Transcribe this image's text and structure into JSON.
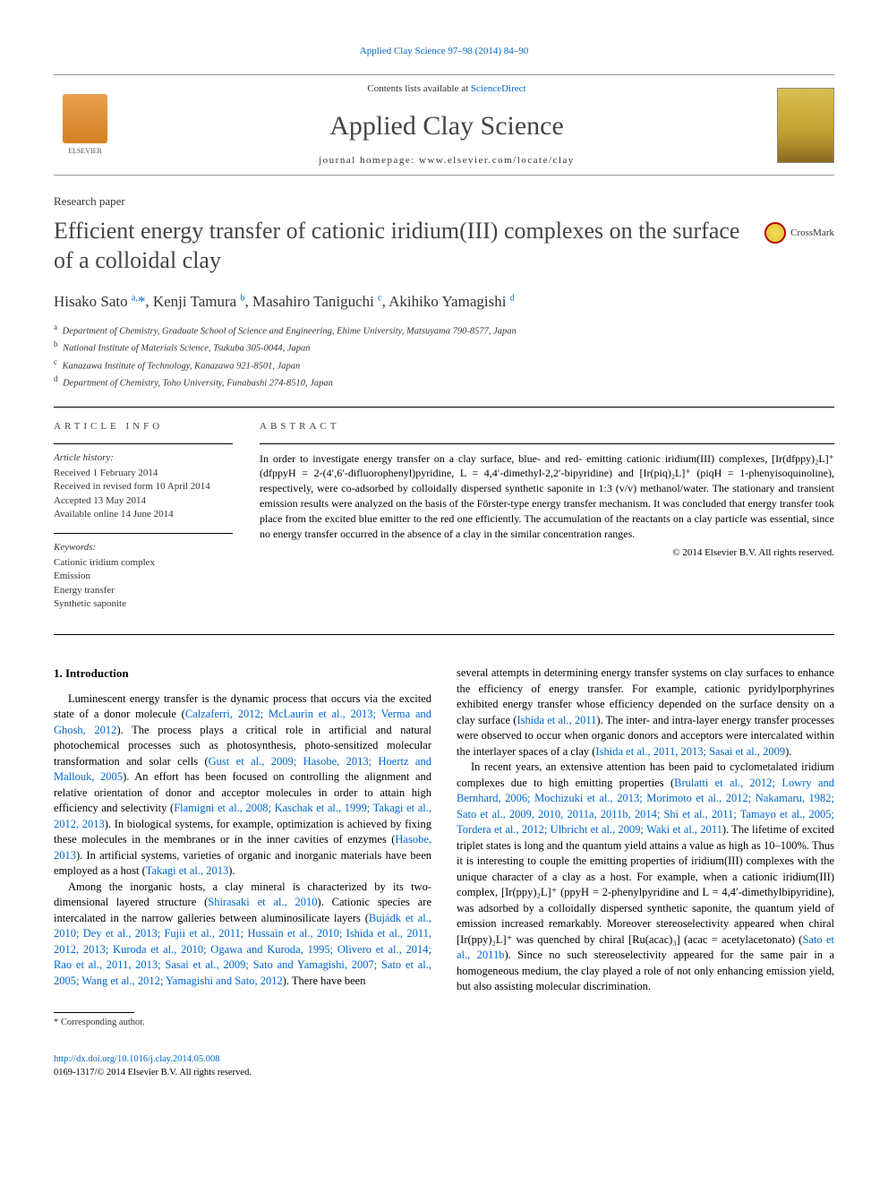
{
  "top_citation": "Applied Clay Science 97–98 (2014) 84–90",
  "header": {
    "contents_prefix": "Contents lists available at ",
    "contents_linktext": "ScienceDirect",
    "journal_name": "Applied Clay Science",
    "homepage_prefix": "journal homepage: ",
    "homepage_url": "www.elsevier.com/locate/clay",
    "elsevier_label": "ELSEVIER"
  },
  "paper_type": "Research paper",
  "title": "Efficient energy transfer of cationic iridium(III) complexes on the surface of a colloidal clay",
  "crossmark_label": "CrossMark",
  "authors_html": "Hisako Sato <sup>a,</sup><a href='#'>*</a>, Kenji Tamura <sup>b</sup>, Masahiro Taniguchi <sup>c</sup>, Akihiko Yamagishi <sup>d</sup>",
  "affiliations": [
    {
      "sup": "a",
      "text": "Department of Chemistry, Graduate School of Science and Engineering, Ehime University, Matsuyama 790-8577, Japan"
    },
    {
      "sup": "b",
      "text": "National Institute of Materials Science, Tsukuba 305-0044, Japan"
    },
    {
      "sup": "c",
      "text": "Kanazawa Institute of Technology, Kanazawa 921-8501, Japan"
    },
    {
      "sup": "d",
      "text": "Department of Chemistry, Toho University, Funabashi 274-8510, Japan"
    }
  ],
  "article_info": {
    "heading": "ARTICLE INFO",
    "history_label": "Article history:",
    "history": [
      "Received 1 February 2014",
      "Received in revised form 10 April 2014",
      "Accepted 13 May 2014",
      "Available online 14 June 2014"
    ],
    "keywords_label": "Keywords:",
    "keywords": [
      "Cationic iridium complex",
      "Emission",
      "Energy transfer",
      "Synthetic saponite"
    ]
  },
  "abstract": {
    "heading": "ABSTRACT",
    "text": "In order to investigate energy transfer on a clay surface, blue- and red- emitting cationic iridium(III) complexes, [Ir(dfppy)₂L]⁺ (dfppyH = 2-(4′,6′-difluorophenyl)pyridine, L = 4,4′-dimethyl-2,2′-bipyridine) and [Ir(piq)₂L]⁺ (piqH = 1-phenyisoquinoline), respectively, were co-adsorbed by colloidally dispersed synthetic saponite in 1:3 (v/v) methanol/water. The stationary and transient emission results were analyzed on the basis of the Förster-type energy transfer mechanism. It was concluded that energy transfer took place from the excited blue emitter to the red one efficiently. The accumulation of the reactants on a clay particle was essential, since no energy transfer occurred in the absence of a clay in the similar concentration ranges.",
    "copyright": "© 2014 Elsevier B.V. All rights reserved."
  },
  "intro": {
    "heading": "1. Introduction",
    "col1_paras": [
      "Luminescent energy transfer is the dynamic process that occurs via the excited state of a donor molecule (<a href='#'>Calzaferri, 2012; McLaurin et al., 2013; Verma and Ghosh, 2012</a>). The process plays a critical role in artificial and natural photochemical processes such as photosynthesis, photo-sensitized molecular transformation and solar cells (<a href='#'>Gust et al., 2009; Hasobe, 2013; Hoertz and Mallouk, 2005</a>). An effort has been focused on controlling the alignment and relative orientation of donor and acceptor molecules in order to attain high efficiency and selectivity (<a href='#'>Flamigni et al., 2008; Kaschak et al., 1999; Takagi et al., 2012, 2013</a>). In biological systems, for example, optimization is achieved by fixing these molecules in the membranes or in the inner cavities of enzymes (<a href='#'>Hasobe, 2013</a>). In artificial systems, varieties of organic and inorganic materials have been employed as a host (<a href='#'>Takagi et al., 2013</a>).",
      "Among the inorganic hosts, a clay mineral is characterized by its two-dimensional layered structure (<a href='#'>Shirasaki et al., 2010</a>). Cationic species are intercalated in the narrow galleries between aluminosilicate layers (<a href='#'>Bujádk et al., 2010; Dey et al., 2013; Fujii et al., 2011; Hussain et al., 2010; Ishida et al., 2011, 2012, 2013; Kuroda et al., 2010; Ogawa and Kuroda, 1995; Olivero et al., 2014; Rao et al., 2011, 2013; Sasai et al., 2009; Sato and Yamagishi, 2007; Sato et al., 2005; Wang et al., 2012; Yamagishi and Sato, 2012</a>). There have been"
    ],
    "col2_paras": [
      "several attempts in determining energy transfer systems on clay surfaces to enhance the efficiency of energy transfer. For example, cationic pyridylporphyrines exhibited energy transfer whose efficiency depended on the surface density on a clay surface (<a href='#'>Ishida et al., 2011</a>). The inter- and intra-layer energy transfer processes were observed to occur when organic donors and acceptors were intercalated within the interlayer spaces of a clay (<a href='#'>Ishida et al., 2011, 2013; Sasai et al., 2009</a>).",
      "In recent years, an extensive attention has been paid to cyclometalated iridium complexes due to high emitting properties (<a href='#'>Brulatti et al., 2012; Lowry and Bernhard, 2006; Mochizuki et al., 2013; Morimoto et al., 2012; Nakamaru, 1982; Sato et al., 2009, 2010, 2011a, 2011b, 2014; Shi et al., 2011; Tamayo et al., 2005; Tordera et al., 2012; Ulbricht et al., 2009; Waki et al., 2011</a>). The lifetime of excited triplet states is long and the quantum yield attains a value as high as 10–100%. Thus it is interesting to couple the emitting properties of iridium(III) complexes with the unique character of a clay as a host. For example, when a cationic iridium(III) complex, [Ir(ppy)₂L]⁺ (ppyH = 2-phenylpyridine and L = 4,4′-dimethylbipyridine), was adsorbed by a colloidally dispersed synthetic saponite, the quantum yield of emission increased remarkably. Moreover stereoselectivity appeared when chiral [Ir(ppy)₂L]⁺ was quenched by chiral [Ru(acac)₃] (acac = acetylacetonato) (<a href='#'>Sato et al., 2011b</a>). Since no such stereoselectivity appeared for the same pair in a homogeneous medium, the clay played a role of not only enhancing emission yield, but also assisting molecular discrimination."
    ]
  },
  "footnote": "* Corresponding author.",
  "footer": {
    "doi": "http://dx.doi.org/10.1016/j.clay.2014.05.008",
    "issn_line": "0169-1317/© 2014 Elsevier B.V. All rights reserved."
  },
  "colors": {
    "link": "#0066cc",
    "text": "#000000",
    "muted": "#444444"
  }
}
